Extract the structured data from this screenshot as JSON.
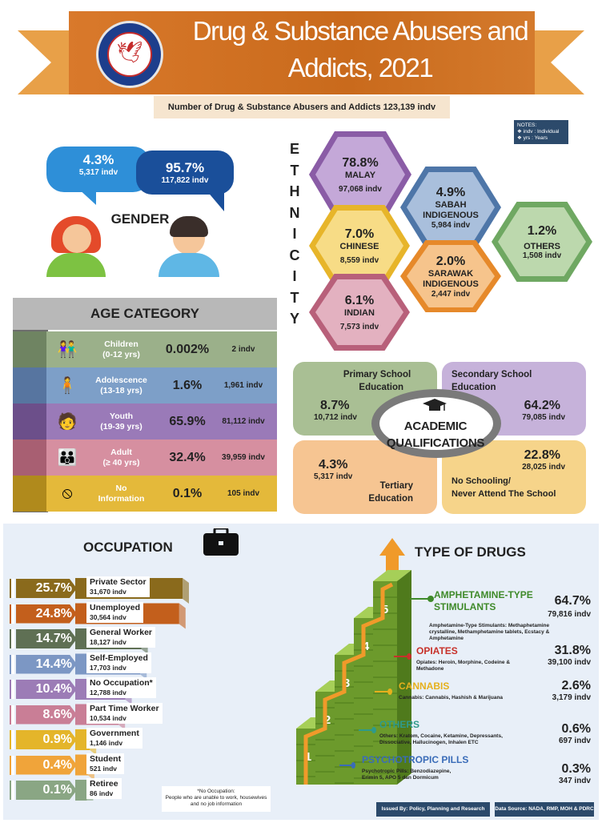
{
  "header": {
    "title_line1": "Drug & Substance Abusers and",
    "title_line2": "Addicts, 2021",
    "logo_text": "AGENSI ANTIDADAH KEBANGSAAN · NADA",
    "subtitle": "Number of Drug & Substance Abusers and Addicts 123,139 indv"
  },
  "notes": {
    "title": "NOTES:",
    "line1": "❖  indv : Individual",
    "line2": "❖  yrs : Years"
  },
  "gender": {
    "label": "GENDER",
    "female": {
      "pct": "4.3%",
      "count": "5,317 indv",
      "fraction": 0.043
    },
    "male": {
      "pct": "95.7%",
      "count": "117,822 indv",
      "fraction": 0.957
    }
  },
  "ethnicity": {
    "letters": [
      "E",
      "T",
      "H",
      "N",
      "I",
      "C",
      "I",
      "T",
      "Y"
    ],
    "groups": [
      {
        "pct": "78.8%",
        "name": "MALAY",
        "count": "97,068 indv",
        "color": "#8a5ca6",
        "inner": "#c4a8d8"
      },
      {
        "pct": "4.9%",
        "name": "SABAH INDIGENOUS",
        "count": "5,984 indv",
        "color": "#4e76a8",
        "inner": "#a9bfdc"
      },
      {
        "pct": "7.0%",
        "name": "CHINESE",
        "count": "8,559 indv",
        "color": "#e7b52a",
        "inner": "#f7dc86"
      },
      {
        "pct": "1.2%",
        "name": "OTHERS",
        "count": "1,508 indv",
        "color": "#6fa862",
        "inner": "#bcd8ad"
      },
      {
        "pct": "2.0%",
        "name": "SARAWAK INDIGENOUS",
        "count": "2,447 indv",
        "color": "#e6892a",
        "inner": "#f6c48c"
      },
      {
        "pct": "6.1%",
        "name": "INDIAN",
        "count": "7,573 indv",
        "color": "#b8607a",
        "inner": "#e3b1c0"
      }
    ]
  },
  "age": {
    "title": "AGE CATEGORY",
    "rows": [
      {
        "label": "Children",
        "range": "(0-12 yrs)",
        "pct": "0.002%",
        "count": "2 indv",
        "color": "#9bb08a",
        "side": "#6f8462",
        "icon": "children-icon"
      },
      {
        "label": "Adolescence",
        "range": "(13-18 yrs)",
        "pct": "1.6%",
        "count": "1,961 indv",
        "color": "#7d9fc8",
        "side": "#5775a0",
        "icon": "adolescence-icon"
      },
      {
        "label": "Youth",
        "range": "(19-39 yrs)",
        "pct": "65.9%",
        "count": "81,112 indv",
        "color": "#9a7ab8",
        "side": "#6c4f8a",
        "icon": "youth-icon"
      },
      {
        "label": "Adult",
        "range": "(≥ 40 yrs)",
        "pct": "32.4%",
        "count": "39,959 indv",
        "color": "#d68fa0",
        "side": "#a85f72",
        "icon": "adult-icon"
      },
      {
        "label": "No",
        "range": "Information",
        "pct": "0.1%",
        "count": "105 indv",
        "color": "#e4b93a",
        "side": "#b08a1c",
        "icon": "no-information-icon"
      }
    ]
  },
  "academic": {
    "title_line1": "ACADEMIC",
    "title_line2": "QUALIFICATIONS",
    "primary": {
      "title_line1": "Primary School",
      "title_line2": "Education",
      "pct": "8.7%",
      "count": "10,712 indv",
      "color": "#a9bf94"
    },
    "secondary": {
      "title_line1": "Secondary School",
      "title_line2": "Education",
      "pct": "64.2%",
      "count": "79,085 indv",
      "color": "#c6b2da"
    },
    "tertiary": {
      "title_line1": "Tertiary",
      "title_line2": "Education",
      "pct": "4.3%",
      "count": "5,317 indv",
      "color": "#f6c592"
    },
    "none": {
      "title_line1": "No Schooling/",
      "title_line2": "Never Attend The School",
      "pct": "22.8%",
      "count": "28,025 indv",
      "color": "#f6d48a"
    }
  },
  "occupation": {
    "title": "OCCUPATION",
    "note_title": "*No Occupation:",
    "note_text": "People who are unable to work, housewives and no job information",
    "rows": [
      {
        "pct": "25.7%",
        "label": "Private Sector",
        "count": "31,670 indv",
        "color": "#8a6a1c",
        "bar": 0.257
      },
      {
        "pct": "24.8%",
        "label": "Unemployed",
        "count": "30,564 indv",
        "color": "#c35f1c",
        "bar": 0.248
      },
      {
        "pct": "14.7%",
        "label": "General Worker",
        "count": "18,127 indv",
        "color": "#5f7054",
        "bar": 0.147
      },
      {
        "pct": "14.4%",
        "label": "Self-Employed",
        "count": "17,703 indv",
        "color": "#7c97c4",
        "bar": 0.144
      },
      {
        "pct": "10.4%",
        "label": "No Occupation*",
        "count": "12,788 indv",
        "color": "#9c7cb6",
        "bar": 0.104
      },
      {
        "pct": "8.6%",
        "label": "Part Time Worker",
        "count": "10,534 indv",
        "color": "#c97e96",
        "bar": 0.086
      },
      {
        "pct": "0.9%",
        "label": "Government",
        "count": "1,146 indv",
        "color": "#e4b52a",
        "bar": 0.009
      },
      {
        "pct": "0.4%",
        "label": "Student",
        "count": "521 indv",
        "color": "#f0a43a",
        "bar": 0.004
      },
      {
        "pct": "0.1%",
        "label": "Retiree",
        "count": "86 indv",
        "color": "#8aa684",
        "bar": 0.001
      }
    ]
  },
  "drugs": {
    "title": "TYPE OF DRUGS",
    "steps": [
      "1",
      "2",
      "3",
      "4",
      "5"
    ],
    "items": [
      {
        "name_line1": "AMPHETAMINE-TYPE",
        "name_line2": "STIMULANTS",
        "desc": "Amphetamine-Type Stimulants: Methaphetamine crystalline, Methamphetamine tablets, Ecstacy & Amphetamine",
        "pct": "64.7%",
        "count": "79,816 indv",
        "color": "#3f8a2a"
      },
      {
        "name_line1": "OPIATES",
        "name_line2": "",
        "desc": "Opiates: Heroin, Morphine, Codeine & Methadone",
        "pct": "31.8%",
        "count": "39,100 indv",
        "color": "#c7312a"
      },
      {
        "name_line1": "CANNABIS",
        "name_line2": "",
        "desc": "Cannabis: Cannabis, Hashish & Marijuana",
        "pct": "2.6%",
        "count": "3,179 indv",
        "color": "#e6b01c"
      },
      {
        "name_line1": "OTHERS",
        "name_line2": "",
        "desc": "Others: Kratom, Cocaine, Ketamine, Depressants, Dissociative, Hallucinogen, Inhalen ETC",
        "pct": "0.6%",
        "count": "697 indv",
        "color": "#2f9a8a"
      },
      {
        "name_line1": "PSYCHOTROPIC PILLS",
        "name_line2": "",
        "desc": "Psychotropic Pills: Benzodiazepine, Erimin 5, APO 5 dan Dormicum",
        "pct": "0.3%",
        "count": "347 indv",
        "color": "#3a6cb8"
      }
    ]
  },
  "footer": {
    "issued": "Issued By: Policy, Planning and Research Division",
    "source": "Data Source: NADA, RMP, MOH & PDRC"
  }
}
